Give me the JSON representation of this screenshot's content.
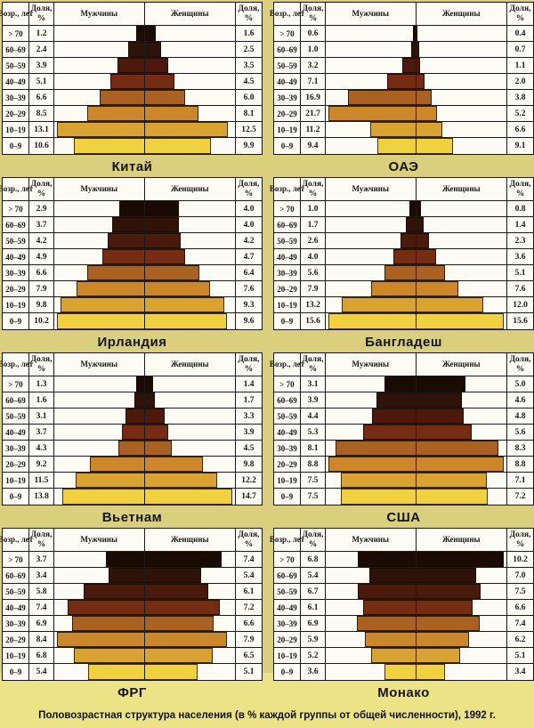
{
  "caption": "Половозрастная структура населения (в % каждой группы от общей численности), 1992 г.",
  "table_headers": {
    "age": "Возр.,\nлет",
    "share": "Доля,\n%",
    "men": "Мужчины",
    "women": "Женщины"
  },
  "bar_colors": [
    "#1a0c05",
    "#2f1309",
    "#4c1a0b",
    "#752c12",
    "#ab6120",
    "#cc8728",
    "#d9a32f",
    "#f1d23e"
  ],
  "table_bg": "#fcfbf4",
  "page_bg": "#d9cf7c",
  "band_bg": "#ece387",
  "chart_data": [
    {
      "type": "bar",
      "title": "Китай",
      "unit": "%",
      "categories": [
        "> 70",
        "60–69",
        "50–59",
        "40–49",
        "30–39",
        "20–29",
        "10–19",
        "0–9"
      ],
      "series": [
        {
          "name": "Мужчины",
          "values": [
            1.2,
            2.4,
            3.9,
            5.1,
            6.6,
            8.5,
            13.1,
            10.6
          ]
        },
        {
          "name": "Женщины",
          "values": [
            1.6,
            2.5,
            3.5,
            4.5,
            6.0,
            8.1,
            12.5,
            9.9
          ]
        }
      ]
    },
    {
      "type": "bar",
      "title": "ОАЭ",
      "unit": "%",
      "categories": [
        "> 70",
        "60–69",
        "50–59",
        "40–49",
        "30–39",
        "20–29",
        "10–19",
        "0–9"
      ],
      "series": [
        {
          "name": "Мужчины",
          "values": [
            0.6,
            1.0,
            3.2,
            7.1,
            16.9,
            21.7,
            11.2,
            9.4
          ]
        },
        {
          "name": "Женщины",
          "values": [
            0.4,
            0.7,
            1.1,
            2.0,
            3.8,
            5.2,
            6.6,
            9.1
          ]
        }
      ]
    },
    {
      "type": "bar",
      "title": "Ирландия",
      "unit": "%",
      "categories": [
        "> 70",
        "60–69",
        "50–59",
        "40–49",
        "30–39",
        "20–29",
        "10–19",
        "0–9"
      ],
      "series": [
        {
          "name": "Мужчины",
          "values": [
            2.9,
            3.7,
            4.2,
            4.9,
            6.6,
            7.9,
            9.8,
            10.2
          ]
        },
        {
          "name": "Женщины",
          "values": [
            4.0,
            4.0,
            4.2,
            4.7,
            6.4,
            7.6,
            9.3,
            9.6
          ]
        }
      ]
    },
    {
      "type": "bar",
      "title": "Бангладеш",
      "unit": "%",
      "categories": [
        "> 70",
        "60–69",
        "50–59",
        "40–49",
        "30–39",
        "20–29",
        "10–19",
        "0–9"
      ],
      "series": [
        {
          "name": "Мужчины",
          "values": [
            1.0,
            1.7,
            2.6,
            4.0,
            5.6,
            7.9,
            13.2,
            15.6
          ]
        },
        {
          "name": "Женщины",
          "values": [
            0.8,
            1.4,
            2.3,
            3.6,
            5.1,
            7.6,
            12.0,
            15.6
          ]
        }
      ]
    },
    {
      "type": "bar",
      "title": "Вьетнам",
      "unit": "%",
      "categories": [
        "> 70",
        "60–69",
        "50–59",
        "40–49",
        "30–39",
        "20–29",
        "10–19",
        "0–9"
      ],
      "series": [
        {
          "name": "Мужчины",
          "values": [
            1.3,
            1.6,
            3.1,
            3.7,
            4.3,
            9.2,
            11.5,
            13.8
          ]
        },
        {
          "name": "Женщины",
          "values": [
            1.4,
            1.7,
            3.3,
            3.9,
            4.5,
            9.8,
            12.2,
            14.7
          ]
        }
      ]
    },
    {
      "type": "bar",
      "title": "США",
      "unit": "%",
      "categories": [
        "> 70",
        "60–69",
        "50–59",
        "40–49",
        "30–39",
        "20–29",
        "10–19",
        "0–9"
      ],
      "series": [
        {
          "name": "Мужчины",
          "values": [
            3.1,
            3.9,
            4.4,
            5.3,
            8.1,
            8.8,
            7.5,
            7.5
          ]
        },
        {
          "name": "Женщины",
          "values": [
            5.0,
            4.6,
            4.8,
            5.6,
            8.3,
            8.8,
            7.1,
            7.2
          ]
        }
      ]
    },
    {
      "type": "bar",
      "title": "ФРГ",
      "unit": "%",
      "categories": [
        "> 70",
        "60–69",
        "50–59",
        "40–49",
        "30–39",
        "20–29",
        "10–19",
        "0–9"
      ],
      "series": [
        {
          "name": "Мужчины",
          "values": [
            3.7,
            3.4,
            5.8,
            7.4,
            6.9,
            8.4,
            6.8,
            5.4
          ]
        },
        {
          "name": "Женщины",
          "values": [
            7.4,
            5.4,
            6.1,
            7.2,
            6.6,
            7.9,
            6.5,
            5.1
          ]
        }
      ]
    },
    {
      "type": "bar",
      "title": "Монако",
      "unit": "%",
      "categories": [
        "> 70",
        "60–69",
        "50–59",
        "40–49",
        "30–39",
        "20–29",
        "10–19",
        "0–9"
      ],
      "series": [
        {
          "name": "Мужчины",
          "values": [
            6.8,
            5.4,
            6.7,
            6.1,
            6.9,
            5.9,
            5.2,
            3.6
          ]
        },
        {
          "name": "Женщины",
          "values": [
            10.2,
            7.0,
            7.5,
            6.6,
            7.4,
            6.2,
            5.1,
            3.4
          ]
        }
      ]
    }
  ]
}
